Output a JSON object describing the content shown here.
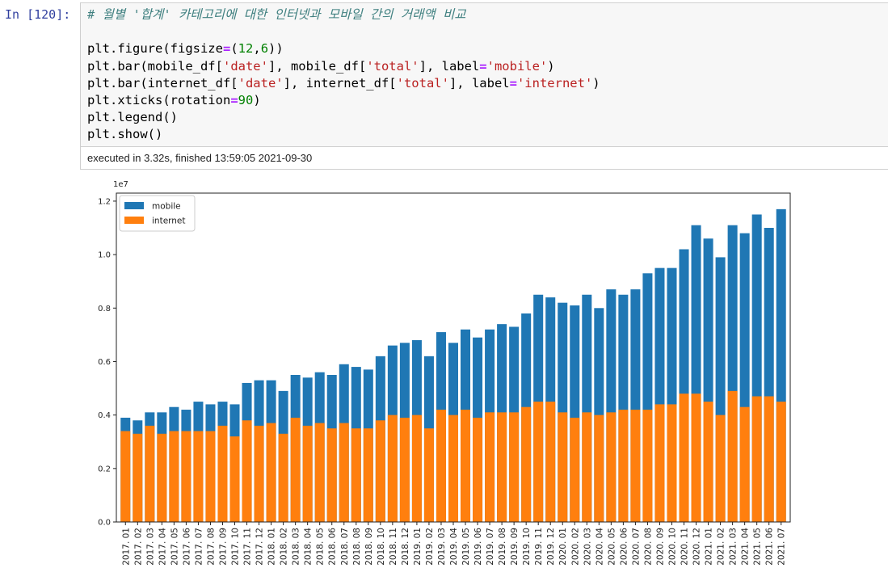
{
  "cell": {
    "prompt": "In [120]:",
    "code_lines": [
      [
        {
          "t": "comment",
          "v": "# 월별 '합계' 카테고리에 대한 인터넷과 모바일 간의 거래액 비교"
        }
      ],
      [],
      [
        {
          "t": "plain",
          "v": "plt.figure(figsize"
        },
        {
          "t": "op",
          "v": "="
        },
        {
          "t": "plain",
          "v": "("
        },
        {
          "t": "num",
          "v": "12"
        },
        {
          "t": "plain",
          "v": ","
        },
        {
          "t": "num",
          "v": "6"
        },
        {
          "t": "plain",
          "v": "))"
        }
      ],
      [
        {
          "t": "plain",
          "v": "plt.bar(mobile_df["
        },
        {
          "t": "str",
          "v": "'date'"
        },
        {
          "t": "plain",
          "v": "], mobile_df["
        },
        {
          "t": "str",
          "v": "'total'"
        },
        {
          "t": "plain",
          "v": "], label"
        },
        {
          "t": "op",
          "v": "="
        },
        {
          "t": "str",
          "v": "'mobile'"
        },
        {
          "t": "plain",
          "v": ")"
        }
      ],
      [
        {
          "t": "plain",
          "v": "plt.bar(internet_df["
        },
        {
          "t": "str",
          "v": "'date'"
        },
        {
          "t": "plain",
          "v": "], internet_df["
        },
        {
          "t": "str",
          "v": "'total'"
        },
        {
          "t": "plain",
          "v": "], label"
        },
        {
          "t": "op",
          "v": "="
        },
        {
          "t": "str",
          "v": "'internet'"
        },
        {
          "t": "plain",
          "v": ")"
        }
      ],
      [
        {
          "t": "plain",
          "v": "plt.xticks(rotation"
        },
        {
          "t": "op",
          "v": "="
        },
        {
          "t": "num",
          "v": "90"
        },
        {
          "t": "plain",
          "v": ")"
        }
      ],
      [
        {
          "t": "plain",
          "v": "plt.legend()"
        }
      ],
      [
        {
          "t": "plain",
          "v": "plt.show()"
        }
      ]
    ],
    "exec_status": "executed in 3.32s, finished 13:59:05 2021-09-30"
  },
  "colors": {
    "mobile": "#1f77b4",
    "internet": "#ff7f0e"
  },
  "chart_data": {
    "type": "bar",
    "title": "",
    "xlabel": "",
    "ylabel": "",
    "offset_label": "1e7",
    "ylim": [
      0,
      1.23
    ],
    "yticks": [
      "0.0",
      "0.2",
      "0.4",
      "0.6",
      "0.8",
      "1.0",
      "1.2"
    ],
    "legend_position": "upper-left",
    "grid": false,
    "categories": [
      "2017. 01",
      "2017. 02",
      "2017. 03",
      "2017. 04",
      "2017. 05",
      "2017. 06",
      "2017. 07",
      "2017. 08",
      "2017. 09",
      "2017. 10",
      "2017. 11",
      "2017. 12",
      "2018. 01",
      "2018. 02",
      "2018. 03",
      "2018. 04",
      "2018. 05",
      "2018. 06",
      "2018. 07",
      "2018. 08",
      "2018. 09",
      "2018. 10",
      "2018. 11",
      "2018. 12",
      "2019. 01",
      "2019. 02",
      "2019. 03",
      "2019. 04",
      "2019. 05",
      "2019. 06",
      "2019. 07",
      "2019. 08",
      "2019. 09",
      "2019. 10",
      "2019. 11",
      "2019. 12",
      "2020. 01",
      "2020. 02",
      "2020. 03",
      "2020. 04",
      "2020. 05",
      "2020. 06",
      "2020. 07",
      "2020. 08",
      "2020. 09",
      "2020. 10",
      "2020. 11",
      "2020. 12",
      "2021. 01",
      "2021. 02",
      "2021. 03",
      "2021. 04",
      "2021. 05",
      "2021. 06",
      "2021. 07"
    ],
    "series": [
      {
        "name": "mobile",
        "values": [
          0.39,
          0.38,
          0.41,
          0.41,
          0.43,
          0.42,
          0.45,
          0.44,
          0.45,
          0.44,
          0.52,
          0.53,
          0.53,
          0.49,
          0.55,
          0.54,
          0.56,
          0.55,
          0.59,
          0.58,
          0.57,
          0.62,
          0.66,
          0.67,
          0.68,
          0.62,
          0.71,
          0.67,
          0.72,
          0.69,
          0.72,
          0.74,
          0.73,
          0.78,
          0.85,
          0.84,
          0.82,
          0.81,
          0.85,
          0.8,
          0.87,
          0.85,
          0.87,
          0.93,
          0.95,
          0.95,
          1.02,
          1.11,
          1.06,
          0.99,
          1.11,
          1.08,
          1.15,
          1.1,
          1.17
        ]
      },
      {
        "name": "internet",
        "values": [
          0.34,
          0.33,
          0.36,
          0.33,
          0.34,
          0.34,
          0.34,
          0.34,
          0.36,
          0.32,
          0.38,
          0.36,
          0.37,
          0.33,
          0.39,
          0.36,
          0.37,
          0.35,
          0.37,
          0.35,
          0.35,
          0.38,
          0.4,
          0.39,
          0.4,
          0.35,
          0.42,
          0.4,
          0.42,
          0.39,
          0.41,
          0.41,
          0.41,
          0.43,
          0.45,
          0.45,
          0.41,
          0.39,
          0.41,
          0.4,
          0.41,
          0.42,
          0.42,
          0.42,
          0.44,
          0.44,
          0.48,
          0.48,
          0.45,
          0.4,
          0.49,
          0.43,
          0.47,
          0.47,
          0.45
        ]
      }
    ]
  }
}
